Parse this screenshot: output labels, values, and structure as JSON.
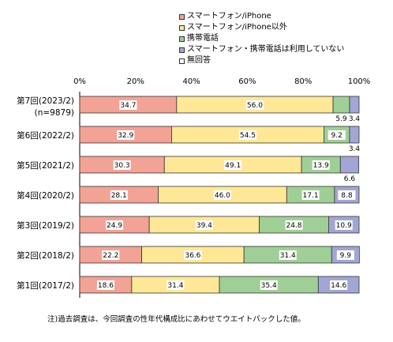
{
  "chart_data": {
    "type": "bar",
    "orientation": "horizontal",
    "stacked": true,
    "categories": [
      "第7回(2023/2)",
      "第6回(2022/2)",
      "第5回(2021/2)",
      "第4回(2020/2)",
      "第3回(2019/2)",
      "第2回(2018/2)",
      "第1回(2017/2)"
    ],
    "category_sublabels": [
      "(n=9879)",
      "",
      "",
      "",
      "",
      "",
      ""
    ],
    "xlim": [
      0,
      100
    ],
    "x_ticks": [
      "0%",
      "20%",
      "40%",
      "60%",
      "80%",
      "100%"
    ],
    "series": [
      {
        "name": "スマートフォン/iPhone",
        "color": "#f2a395",
        "values": [
          34.7,
          32.9,
          30.3,
          28.1,
          24.9,
          22.2,
          18.6
        ]
      },
      {
        "name": "スマートフォン/iPhone以外",
        "color": "#fee898",
        "values": [
          56.0,
          54.5,
          49.1,
          46.0,
          39.4,
          36.6,
          31.4
        ]
      },
      {
        "name": "携帯電話",
        "color": "#9fcf96",
        "values": [
          5.9,
          9.2,
          13.9,
          17.1,
          24.8,
          31.4,
          35.4
        ]
      },
      {
        "name": "スマートフォン・携帯電話は利用していない",
        "color": "#a2a6d4",
        "values": [
          3.4,
          3.4,
          6.6,
          8.8,
          10.9,
          9.9,
          14.6
        ]
      },
      {
        "name": "無回答",
        "color": "#ffffff",
        "values": [
          0,
          0,
          0,
          0,
          0,
          0,
          0
        ]
      }
    ],
    "legend": "top-right",
    "grid": false
  },
  "note": "注)過去調査は、今回調査の性年代構成比にあわせてウエイトバックした値。"
}
